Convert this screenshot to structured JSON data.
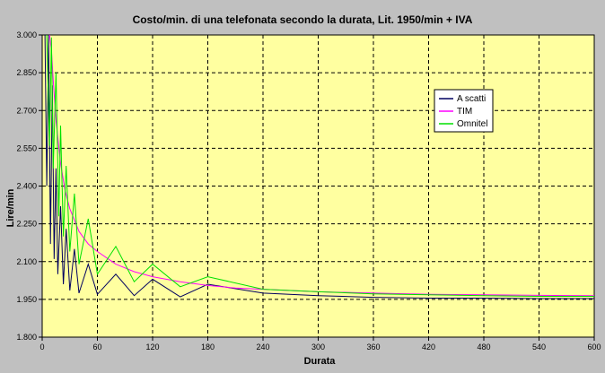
{
  "chart_data": {
    "type": "line",
    "title": "Costo/min. di una telefonata secondo la durata, Lit. 1950/min + IVA",
    "xlabel": "Durata",
    "ylabel": "Lire/min",
    "xlim": [
      0,
      600
    ],
    "ylim": [
      1800,
      3000
    ],
    "x_ticks": [
      "0",
      "60",
      "120",
      "180",
      "240",
      "300",
      "360",
      "420",
      "480",
      "540",
      "600"
    ],
    "y_ticks": [
      "1.800",
      "1.950",
      "2.100",
      "2.250",
      "2.400",
      "2.550",
      "2.700",
      "2.850",
      "3.000"
    ],
    "grid": true,
    "legend_position": "upper-right",
    "plot_background": "#ffffa0",
    "series": [
      {
        "name": "A scatti",
        "color": "#000060",
        "x": [
          3,
          5,
          7,
          9,
          11,
          13,
          15,
          17,
          20,
          23,
          26,
          30,
          35,
          40,
          50,
          60,
          80,
          100,
          120,
          150,
          180,
          240,
          300,
          360,
          420,
          480,
          540,
          600
        ],
        "y": [
          3000,
          2400,
          3000,
          2170,
          2800,
          2110,
          2470,
          2050,
          2320,
          2010,
          2230,
          1985,
          2150,
          1975,
          2090,
          1970,
          2050,
          1965,
          2030,
          1960,
          2010,
          1975,
          1965,
          1958,
          1955,
          1955,
          1953,
          1953
        ]
      },
      {
        "name": "TIM",
        "color": "#ff00ff",
        "x": [
          8,
          10,
          12,
          15,
          20,
          25,
          30,
          40,
          50,
          60,
          80,
          100,
          120,
          150,
          180,
          210,
          240,
          300,
          360,
          420,
          480,
          540,
          600
        ],
        "y": [
          3000,
          2940,
          2820,
          2660,
          2490,
          2380,
          2310,
          2220,
          2170,
          2140,
          2090,
          2060,
          2040,
          2020,
          2005,
          1995,
          1990,
          1980,
          1975,
          1970,
          1968,
          1966,
          1965
        ]
      },
      {
        "name": "Omnitel",
        "color": "#00e000",
        "x": [
          5,
          8,
          10,
          12,
          15,
          18,
          20,
          23,
          26,
          30,
          35,
          40,
          50,
          60,
          80,
          100,
          120,
          150,
          180,
          240,
          300,
          360,
          420,
          480,
          540,
          600
        ],
        "y": [
          3000,
          2560,
          2990,
          2470,
          2850,
          2280,
          2640,
          2200,
          2480,
          2140,
          2370,
          2090,
          2270,
          2050,
          2160,
          2020,
          2090,
          2000,
          2040,
          1990,
          1980,
          1972,
          1968,
          1965,
          1962,
          1962
        ]
      }
    ]
  }
}
